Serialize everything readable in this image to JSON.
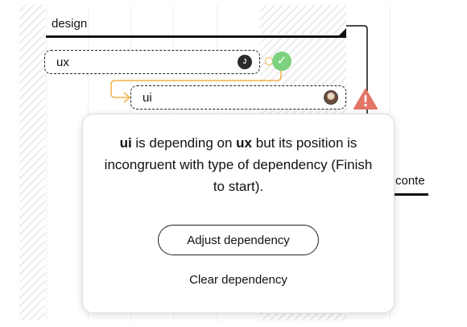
{
  "timeline": {
    "group_label": "design",
    "tasks": [
      {
        "label": "ux",
        "avatar_initial": "J"
      },
      {
        "label": "ui"
      }
    ],
    "partial_label": "conte"
  },
  "popup": {
    "task_name": "ui",
    "text_depends": " is depending on ",
    "dependency_name": "ux",
    "text_rest": " but its position is incongruent with type of dependency (Finish to start).",
    "adjust_label": "Adjust dependency",
    "clear_label": "Clear dependency"
  },
  "colors": {
    "success": "#7ed17e",
    "warning": "#e37566",
    "link": "#f0b24a",
    "ink": "#111111"
  },
  "icons": {
    "status": "check-icon",
    "alert": "warning-icon"
  }
}
